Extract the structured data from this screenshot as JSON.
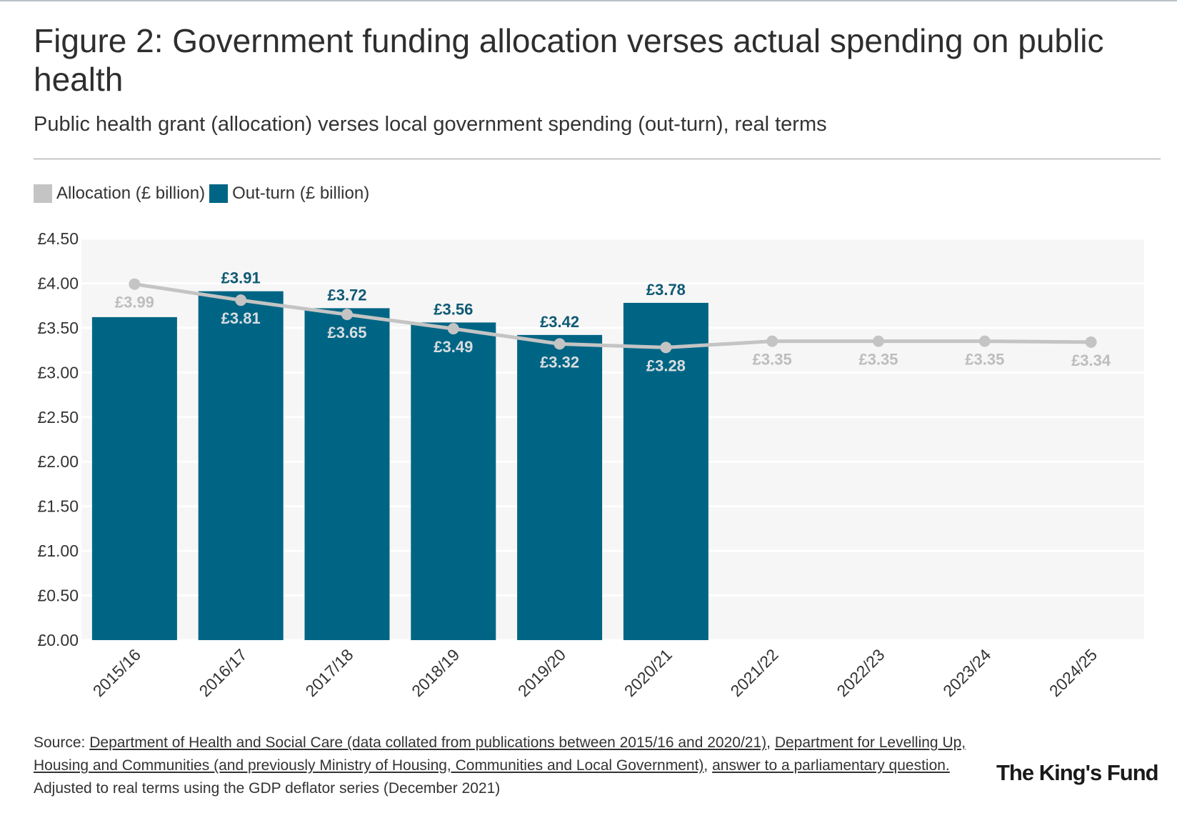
{
  "header": {
    "title": "Figure 2: Government funding allocation verses actual spending on public health",
    "subtitle": "Public health grant (allocation) verses local government spending (out-turn), real terms"
  },
  "legend": {
    "allocation_label": "Allocation (£ billion)",
    "outturn_label": "Out-turn (£ billion)"
  },
  "colors": {
    "allocation": "#c4c4c4",
    "outturn": "#006585",
    "plot_background": "#f6f6f6",
    "allocation_label": "#bdbdbd",
    "outturn_label": "#0f5a74"
  },
  "chart_data": {
    "type": "bar",
    "categories": [
      "2015/16",
      "2016/17",
      "2017/18",
      "2018/19",
      "2019/20",
      "2020/21",
      "2021/22",
      "2022/23",
      "2023/24",
      "2024/25"
    ],
    "series": [
      {
        "name": "Out-turn (£ billion)",
        "type": "bar",
        "values": [
          3.62,
          3.91,
          3.72,
          3.56,
          3.42,
          3.78,
          null,
          null,
          null,
          null
        ],
        "labels": [
          "",
          "£3.91",
          "£3.72",
          "£3.56",
          "£3.42",
          "£3.78",
          "",
          "",
          "",
          ""
        ]
      },
      {
        "name": "Allocation (£ billion)",
        "type": "line",
        "values": [
          3.99,
          3.81,
          3.65,
          3.49,
          3.32,
          3.28,
          3.35,
          3.35,
          3.35,
          3.34
        ],
        "labels": [
          "£3.99",
          "£3.81",
          "£3.65",
          "£3.49",
          "£3.32",
          "£3.28",
          "£3.35",
          "£3.35",
          "£3.35",
          "£3.34"
        ]
      }
    ],
    "ylim": [
      0,
      4.5
    ],
    "yticks": [
      0,
      0.5,
      1.0,
      1.5,
      2.0,
      2.5,
      3.0,
      3.5,
      4.0,
      4.5
    ],
    "ytick_labels": [
      "£0.00",
      "£0.50",
      "£1.00",
      "£1.50",
      "£2.00",
      "£2.50",
      "£3.00",
      "£3.50",
      "£4.00",
      "£4.50"
    ],
    "grid": true,
    "legend_position": "top-left"
  },
  "footer": {
    "source_prefix": "Source: ",
    "link_dhsc": "Department of Health and Social Care (data collated from publications between 2015/16 and 2020/21)",
    "separator": ", ",
    "link_dluhc": "Department for Levelling Up, Housing and Communities (and previously Ministry of Housing, Communities and Local Government)",
    "separator2": ", ",
    "link_pq": "answer to a parliamentary question.",
    "note": "Adjusted to real terms using the GDP deflator series (December 2021)"
  },
  "logo": {
    "text": "The King's Fund"
  }
}
